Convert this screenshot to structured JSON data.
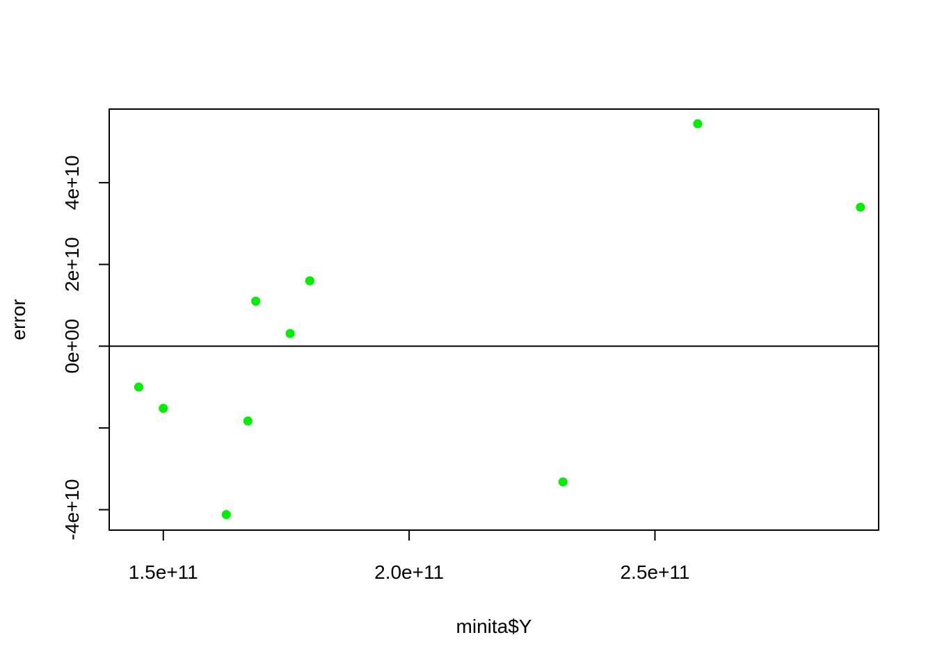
{
  "chart_data": {
    "type": "scatter",
    "title": "",
    "xlabel": "minita$Y",
    "ylabel": "error",
    "xlim": [
      139000000000.0,
      295500000000.0
    ],
    "ylim": [
      -45000000000.0,
      58000000000.0
    ],
    "x_ticks": [
      {
        "value": 150000000000.0,
        "label": "1.5e+11"
      },
      {
        "value": 200000000000.0,
        "label": "2.0e+11"
      },
      {
        "value": 250000000000.0,
        "label": "2.5e+11"
      }
    ],
    "y_ticks": [
      {
        "value": -40000000000.0,
        "label": "-4e+10"
      },
      {
        "value": -20000000000.0,
        "label": ""
      },
      {
        "value": 0,
        "label": "0e+00"
      },
      {
        "value": 20000000000.0,
        "label": "2e+10"
      },
      {
        "value": 40000000000.0,
        "label": "4e+10"
      }
    ],
    "hline": 0,
    "point_color": "#00ee00",
    "points": [
      {
        "x": 145000000000.0,
        "y": -10000000000.0
      },
      {
        "x": 150000000000.0,
        "y": -15200000000.0
      },
      {
        "x": 162800000000.0,
        "y": -41200000000.0
      },
      {
        "x": 167200000000.0,
        "y": -18300000000.0
      },
      {
        "x": 168800000000.0,
        "y": 11000000000.0
      },
      {
        "x": 175800000000.0,
        "y": 3100000000.0
      },
      {
        "x": 179800000000.0,
        "y": 16000000000.0
      },
      {
        "x": 231300000000.0,
        "y": -33200000000.0
      },
      {
        "x": 258700000000.0,
        "y": 54400000000.0
      },
      {
        "x": 291800000000.0,
        "y": 34000000000.0
      }
    ]
  }
}
